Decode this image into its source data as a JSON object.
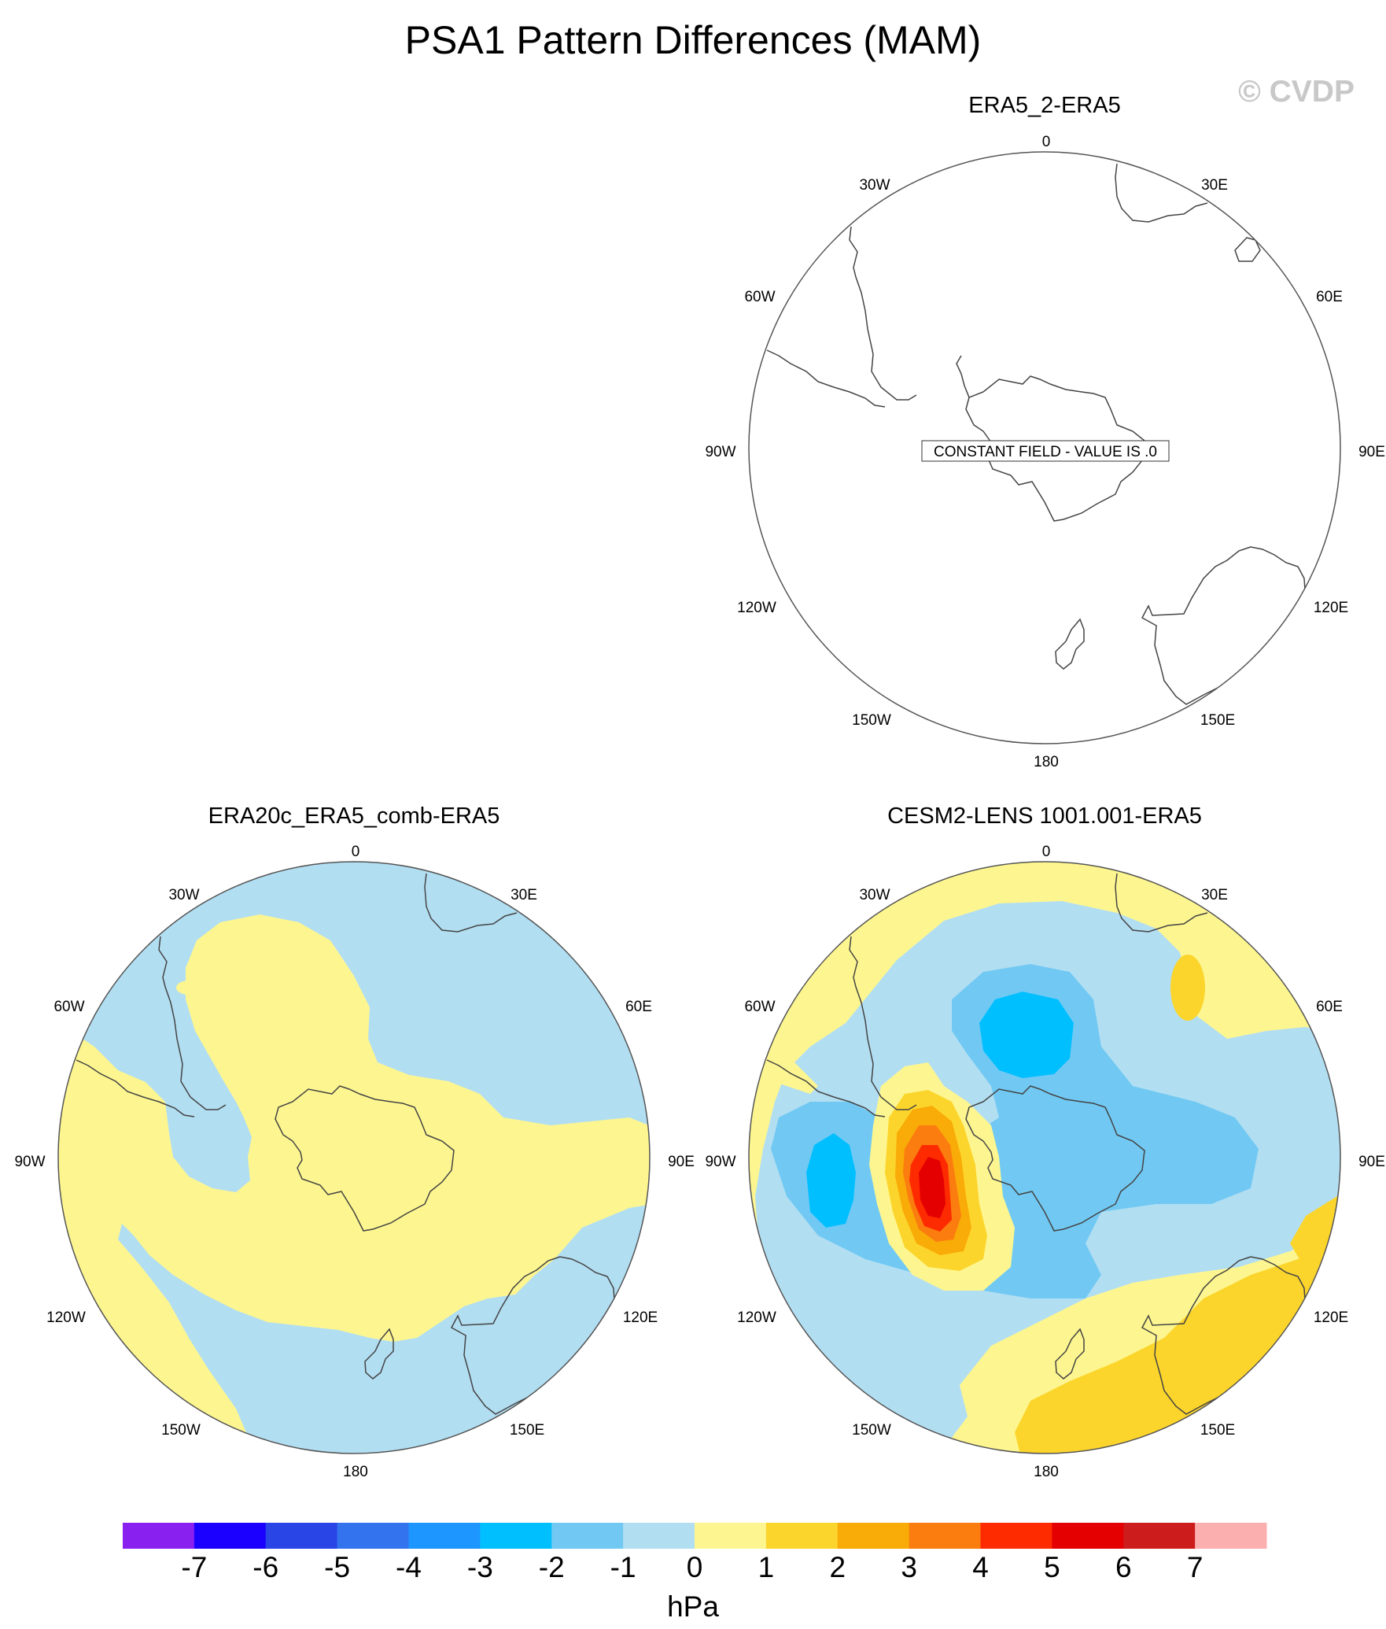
{
  "title": "PSA1 Pattern Differences (MAM)",
  "watermark": "© CVDP",
  "lon_labels": [
    "0",
    "30E",
    "60E",
    "90E",
    "120E",
    "150E",
    "180",
    "150W",
    "120W",
    "90W",
    "60W",
    "30W"
  ],
  "panels": [
    {
      "id": "era5-2",
      "title": "ERA5_2-ERA5",
      "note": "CONSTANT FIELD - VALUE IS .0"
    },
    {
      "id": "era20c",
      "title": "ERA20c_ERA5_comb-ERA5",
      "note": ""
    },
    {
      "id": "cesm2",
      "title": "CESM2-LENS 1001.001-ERA5",
      "note": ""
    }
  ],
  "colorbar": {
    "unit": "hPa",
    "labels": [
      "-7",
      "-6",
      "-5",
      "-4",
      "-3",
      "-2",
      "-1",
      "0",
      "1",
      "2",
      "3",
      "4",
      "5",
      "6",
      "7"
    ],
    "colors": [
      "#8a20f0",
      "#1c00ff",
      "#2a45e6",
      "#3373ee",
      "#1e96ff",
      "#00bfff",
      "#71c9f3",
      "#b2def2",
      "#fdf690",
      "#fcd52c",
      "#f9ab07",
      "#fb7d0f",
      "#fe2b00",
      "#e40000",
      "#cc1c1c",
      "#fcafaf"
    ]
  },
  "map_colors": {
    "background": "#ffffff",
    "outline": "#555555",
    "coast": "#444444"
  }
}
